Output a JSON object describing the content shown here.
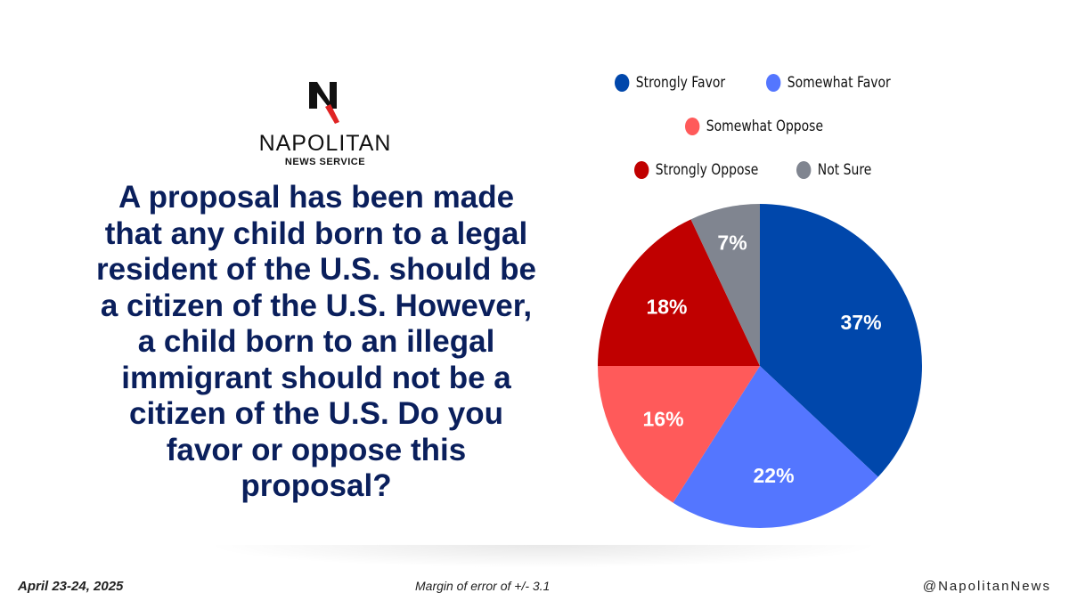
{
  "logo": {
    "brand": "NAPOLITAN",
    "sub": "NEWS SERVICE"
  },
  "question": "A proposal has been made that any child born to a legal resident of the U.S. should be a citizen of the U.S. However, a child born to an illegal immigrant should not be a citizen of the U.S. Do you favor or oppose this proposal?",
  "chart_data": {
    "type": "pie",
    "start": "top",
    "direction": "clockwise",
    "slices": [
      {
        "label": "Strongly Favor",
        "value": 37,
        "display": "37%",
        "color": "#0047ab"
      },
      {
        "label": "Somewhat Favor",
        "value": 22,
        "display": "22%",
        "color": "#5476ff"
      },
      {
        "label": "Somewhat Oppose",
        "value": 16,
        "display": "16%",
        "color": "#ff5a5a"
      },
      {
        "label": "Strongly Oppose",
        "value": 18,
        "display": "18%",
        "color": "#c00000"
      },
      {
        "label": "Not Sure",
        "value": 7,
        "display": "7%",
        "color": "#808590"
      }
    ],
    "legend_position": "top"
  },
  "footer": {
    "date": "April 23-24, 2025",
    "margin": "Margin of error of +/- 3.1",
    "handle": "@NapolitanNews"
  }
}
